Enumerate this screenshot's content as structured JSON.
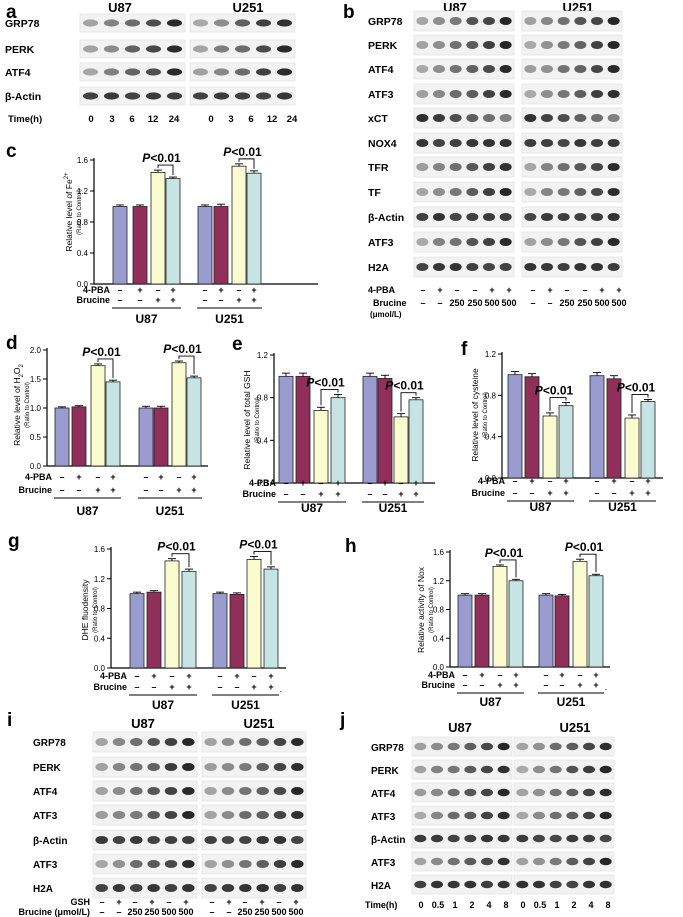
{
  "figure": {
    "colors": {
      "c1": "#9a9cd0",
      "c2": "#8f2f5a",
      "c3": "#fbfbd0",
      "c4": "#c6e4e4"
    },
    "common": {
      "ytitle_sub": "(Ratio to Control)",
      "pbase": "PBA",
      "brucine": "Brucine",
      "plus": "+",
      "minus": "–",
      "sig": "P<0.01",
      "dot": "."
    },
    "panels": {
      "a": {
        "letter": "a",
        "cells": [
          "U87",
          "U251"
        ],
        "rows": [
          "GRP78",
          "PERK",
          "ATF4",
          "β-Actin"
        ],
        "time_label": "Time(h)",
        "time_ticks": [
          "0",
          "3",
          "6",
          "12",
          "24"
        ]
      },
      "b": {
        "letter": "b",
        "cells": [
          "U87",
          "U251"
        ],
        "rows": [
          "GRP78",
          "PERK",
          "ATF4",
          "ATF3",
          "xCT",
          "NOX4",
          "TFR",
          "TF",
          "β-Actin",
          "ATF3",
          "H2A"
        ],
        "pba_label": "4-PBA",
        "pba": [
          "–",
          "+",
          "–",
          "–",
          "+",
          "+"
        ],
        "brucine_label": "Brucine",
        "unit": "(μmol/L)",
        "brucine": [
          "–",
          "–",
          "250",
          "250",
          "500",
          "500"
        ]
      },
      "i": {
        "letter": "i",
        "cells": [
          "U87",
          "U251"
        ],
        "rows": [
          "GRP78",
          "PERK",
          "ATF4",
          "ATF3",
          "β-Actin",
          "ATF3",
          "H2A"
        ],
        "gsh_label": "GSH",
        "gsh": [
          "–",
          "+",
          "–",
          "+",
          "–",
          "+"
        ],
        "brucine_label": "Brucine (μmol/L)",
        "brucine": [
          "–",
          "–",
          "250",
          "250",
          "500",
          "500"
        ]
      },
      "j": {
        "letter": "j",
        "cells": [
          "U87",
          "U251"
        ],
        "rows": [
          "GRP78",
          "PERK",
          "ATF4",
          "ATF3",
          "β-Actin",
          "ATF3",
          "H2A"
        ],
        "time_label": "Time(h)",
        "time_ticks": [
          "0",
          "0.5",
          "1",
          "2",
          "4",
          "8"
        ]
      }
    }
  },
  "chart_data": [
    {
      "panel": "c",
      "type": "bar",
      "ylabel": "Relative level of Fe²⁺",
      "ylabel_base": "Relative level of Fe",
      "ylabel_sup": "2+",
      "ylim": [
        0,
        1.6
      ],
      "yticks": [
        "0.0",
        "0.4",
        "0.8",
        "1.2",
        "1.6"
      ],
      "groups": [
        "U87",
        "U251"
      ],
      "values": [
        [
          1.0,
          1.0,
          1.44,
          1.36
        ],
        [
          1.0,
          1.0,
          1.52,
          1.43
        ]
      ],
      "errors": [
        [
          0.02,
          0.02,
          0.03,
          0.02
        ],
        [
          0.02,
          0.03,
          0.03,
          0.03
        ]
      ],
      "pba": [
        "–",
        "+",
        "–",
        "+"
      ],
      "brucine": [
        "–",
        "–",
        "+",
        "+"
      ],
      "annotation": "P<0.01"
    },
    {
      "panel": "d",
      "type": "bar",
      "ylabel": "Relative level of H₂O₂",
      "ylabel_base": "Relative level of H",
      "ylabel_sub1": "2",
      "ylabel_mid": "O",
      "ylabel_sub2": "2",
      "ylim": [
        0,
        2.0
      ],
      "yticks": [
        "0.0",
        "0.5",
        "1.0",
        "1.5",
        "2.0"
      ],
      "groups": [
        "U87",
        "U251"
      ],
      "values": [
        [
          1.0,
          1.02,
          1.73,
          1.45
        ],
        [
          1.0,
          1.0,
          1.78,
          1.52
        ]
      ],
      "errors": [
        [
          0.02,
          0.02,
          0.03,
          0.03
        ],
        [
          0.03,
          0.03,
          0.03,
          0.03
        ]
      ],
      "pba": [
        "–",
        "+",
        "–",
        "+"
      ],
      "brucine": [
        "–",
        "–",
        "+",
        "+"
      ],
      "annotation": "P<0.01"
    },
    {
      "panel": "e",
      "type": "bar",
      "ylabel": "Relative level of total GSH",
      "ylim": [
        0,
        1.2
      ],
      "yticks": [
        "0.0",
        "0.4",
        "0.8",
        "1.2"
      ],
      "groups": [
        "U87",
        "U251"
      ],
      "values": [
        [
          1.0,
          1.0,
          0.68,
          0.8
        ],
        [
          1.0,
          0.98,
          0.62,
          0.78
        ]
      ],
      "errors": [
        [
          0.03,
          0.03,
          0.03,
          0.03
        ],
        [
          0.03,
          0.03,
          0.03,
          0.02
        ]
      ],
      "pba": [
        "–",
        "+",
        "–",
        "+"
      ],
      "brucine": [
        "–",
        "–",
        "+",
        "+"
      ],
      "annotation": "P<0.01"
    },
    {
      "panel": "f",
      "type": "bar",
      "ylabel": "Relative level of cysteine",
      "ylim": [
        0,
        1.2
      ],
      "yticks": [
        "0.0",
        "0.4",
        "0.8",
        "1.2"
      ],
      "groups": [
        "U87",
        "U251"
      ],
      "values": [
        [
          1.0,
          0.98,
          0.6,
          0.7
        ],
        [
          0.99,
          0.96,
          0.58,
          0.74
        ]
      ],
      "errors": [
        [
          0.03,
          0.03,
          0.03,
          0.03
        ],
        [
          0.03,
          0.03,
          0.03,
          0.02
        ]
      ],
      "pba": [
        "–",
        "+",
        "–",
        "+"
      ],
      "brucine": [
        "–",
        "–",
        "+",
        "+"
      ],
      "annotation": "P<0.01"
    },
    {
      "panel": "g",
      "type": "bar",
      "ylabel": "DHE fluodensity",
      "ylim": [
        0,
        1.6
      ],
      "yticks": [
        "0.0",
        "0.4",
        "0.8",
        "1.2",
        "1.6"
      ],
      "groups": [
        "U87",
        "U251"
      ],
      "values": [
        [
          1.0,
          1.02,
          1.44,
          1.3
        ],
        [
          1.0,
          0.99,
          1.46,
          1.33
        ]
      ],
      "errors": [
        [
          0.02,
          0.02,
          0.03,
          0.03
        ],
        [
          0.02,
          0.02,
          0.04,
          0.03
        ]
      ],
      "pba": [
        "–",
        "+",
        "–",
        "+"
      ],
      "brucine": [
        "–",
        "–",
        "+",
        "+"
      ],
      "annotation": "P<0.01"
    },
    {
      "panel": "h",
      "type": "bar",
      "ylabel": "Relative activity of Nox",
      "ylim": [
        0,
        1.6
      ],
      "yticks": [
        "0.0",
        "0.4",
        "0.8",
        "1.2",
        "1.6"
      ],
      "groups": [
        "U87",
        "U251"
      ],
      "values": [
        [
          1.0,
          1.0,
          1.4,
          1.2
        ],
        [
          1.0,
          0.99,
          1.47,
          1.27
        ]
      ],
      "errors": [
        [
          0.02,
          0.02,
          0.02,
          0.02
        ],
        [
          0.02,
          0.02,
          0.03,
          0.02
        ]
      ],
      "pba": [
        "–",
        "+",
        "–",
        "+"
      ],
      "brucine": [
        "–",
        "–",
        "+",
        "+"
      ],
      "annotation": "P<0.01"
    }
  ]
}
